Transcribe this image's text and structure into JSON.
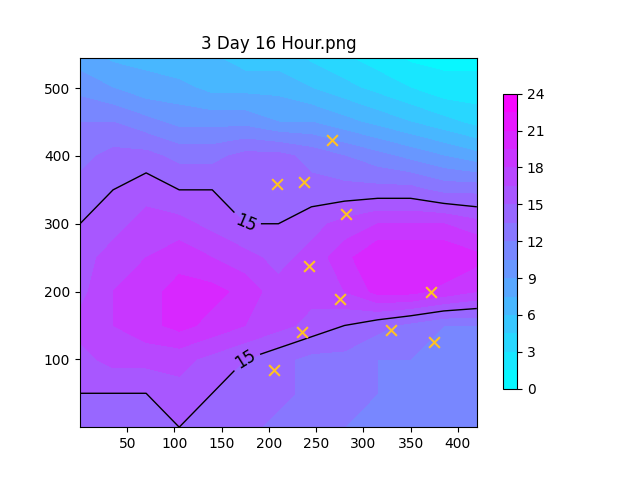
{
  "chart_data": {
    "type": "contour",
    "title": "3 Day 16 Hour.png",
    "x": [
      0,
      35,
      70,
      105,
      140,
      175,
      210,
      245,
      280,
      315,
      350,
      385,
      420
    ],
    "y": [
      0,
      50,
      100,
      150,
      200,
      250,
      300,
      350,
      400,
      450,
      500,
      550
    ],
    "cells": [
      [
        14,
        14,
        15,
        15,
        15,
        14,
        13,
        13,
        12,
        12,
        12,
        12,
        12
      ],
      [
        15,
        15,
        15,
        16,
        15,
        14,
        14,
        13,
        13,
        12,
        12,
        12,
        12
      ],
      [
        16,
        17,
        17,
        17,
        16,
        15,
        14,
        13,
        13,
        12,
        12,
        12,
        12
      ],
      [
        17,
        18,
        19,
        20,
        19,
        18,
        17,
        16,
        15,
        14,
        13,
        12,
        12
      ],
      [
        16,
        18,
        19,
        20,
        20,
        19,
        17,
        17,
        18,
        20,
        20,
        19,
        18
      ],
      [
        16,
        17,
        18,
        19,
        18,
        17,
        16,
        17,
        19,
        21,
        21,
        21,
        20
      ],
      [
        15,
        16,
        17,
        17,
        16,
        15,
        15,
        16,
        17,
        18,
        18,
        18,
        17
      ],
      [
        14,
        15,
        16,
        15,
        15,
        15,
        15,
        14,
        14,
        14,
        14,
        13,
        13
      ],
      [
        13,
        14,
        14,
        13,
        13,
        14,
        14,
        13,
        12,
        11,
        10,
        9,
        8
      ],
      [
        12,
        12,
        11,
        10,
        10,
        10,
        9,
        9,
        8,
        7,
        6,
        5,
        4
      ],
      [
        10,
        9,
        8,
        8,
        7,
        7,
        7,
        6,
        5,
        4,
        3,
        2,
        2
      ],
      [
        8,
        7,
        7,
        6,
        6,
        5,
        5,
        4,
        3,
        2,
        1,
        1,
        1
      ]
    ],
    "levels": [
      0,
      1.5,
      3,
      4.5,
      6,
      7.5,
      9,
      10.5,
      12,
      13.5,
      15,
      16.5,
      18,
      19.5,
      21,
      22.5,
      24
    ],
    "contour_levels": [
      15
    ],
    "colorbar": {
      "range": [
        0,
        24
      ],
      "ticks": [
        0,
        3,
        6,
        9,
        12,
        15,
        18,
        21,
        24
      ]
    },
    "points": {
      "x": [
        267,
        208,
        237,
        282,
        242,
        275,
        372,
        235,
        329,
        375,
        205
      ],
      "y": [
        423,
        358,
        362,
        314,
        237,
        189,
        199,
        140,
        143,
        125,
        85
      ],
      "color": "#ffc125",
      "marker": "x"
    },
    "xlim": [
      0,
      420
    ],
    "ylim": [
      0,
      545
    ],
    "xticks": [
      50,
      100,
      150,
      200,
      250,
      300,
      350,
      400
    ],
    "yticks": [
      100,
      200,
      300,
      400,
      500
    ]
  }
}
